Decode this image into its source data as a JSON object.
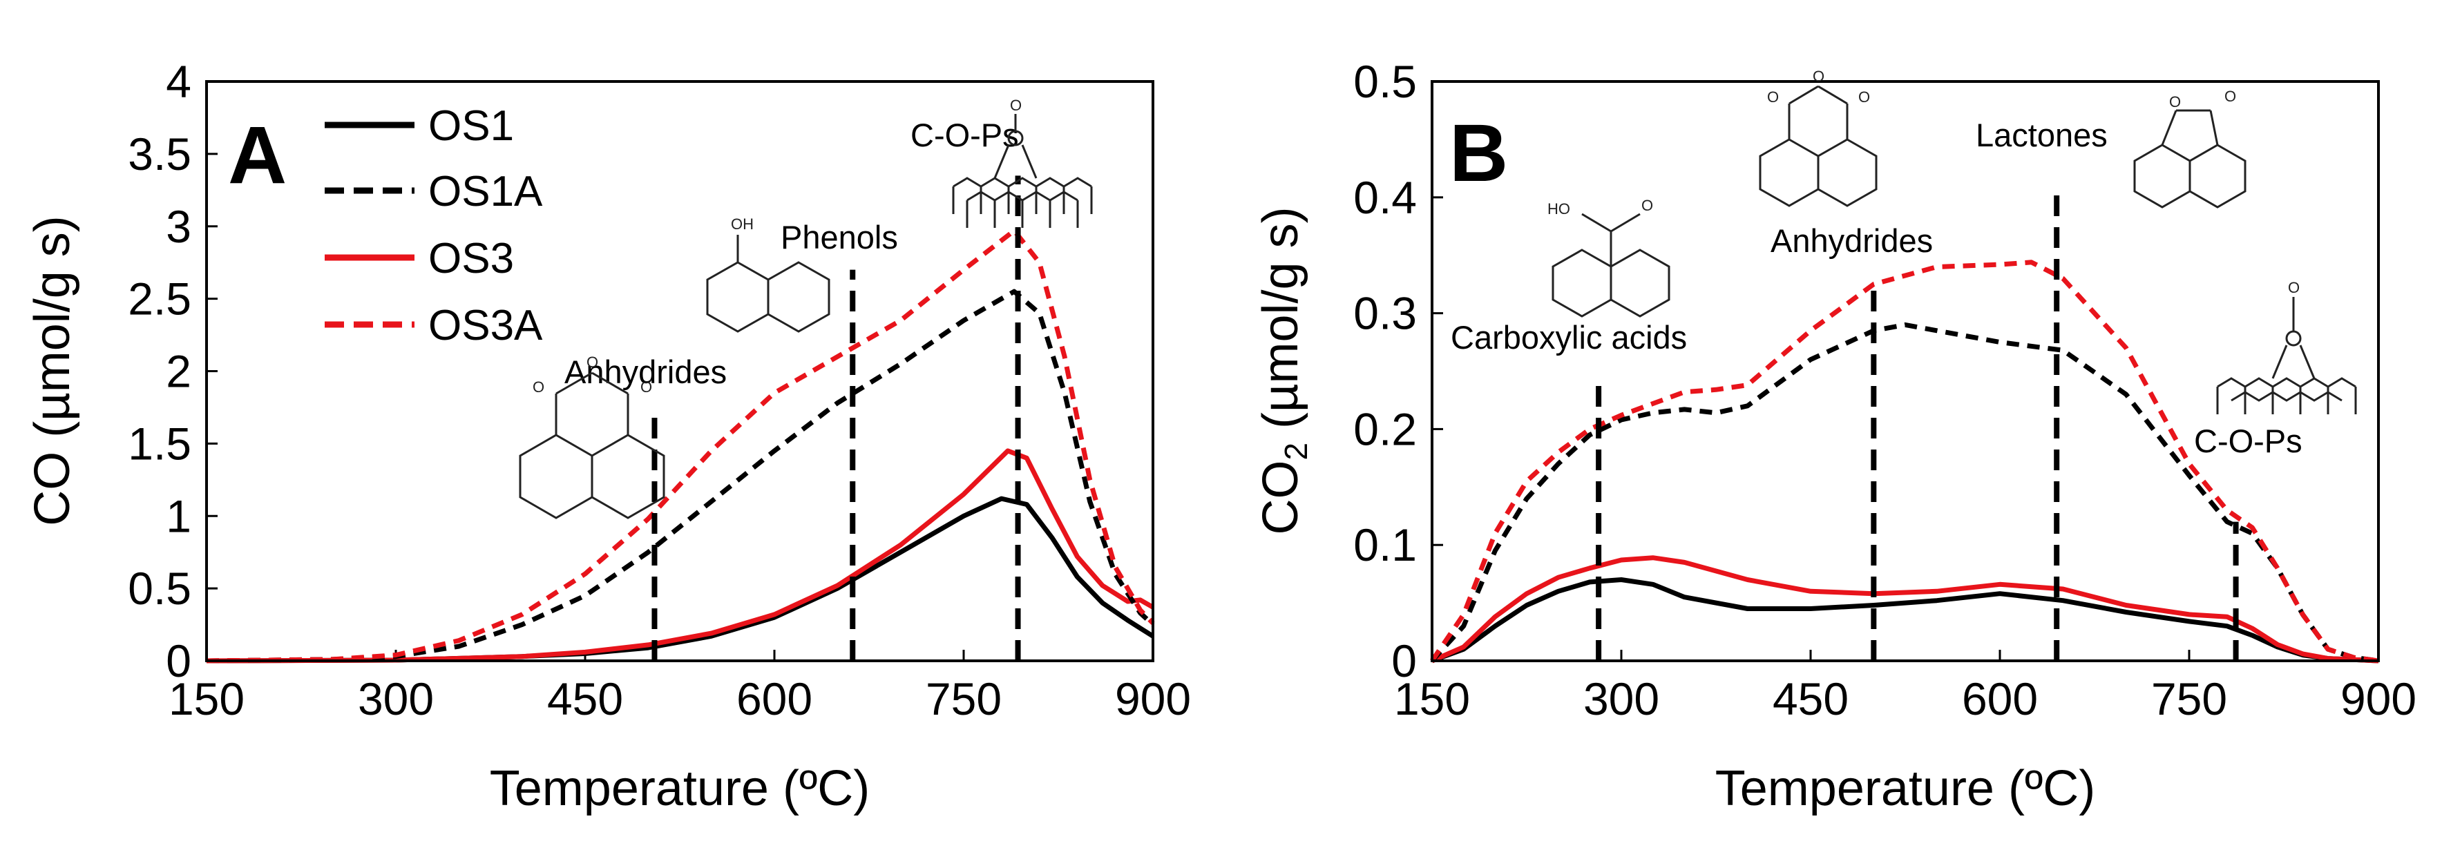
{
  "chart_data": [
    {
      "panel": "A",
      "type": "line",
      "xlabel": "Temperature (ºC)",
      "ylabel": "CO (µmol/g s)",
      "xlim": [
        150,
        900
      ],
      "ylim": [
        0,
        4
      ],
      "xticks": [
        150,
        300,
        450,
        600,
        750,
        900
      ],
      "yticks": [
        0,
        0.5,
        1,
        1.5,
        2,
        2.5,
        3,
        3.5,
        4
      ],
      "ytick_labels": [
        "0",
        "0.5",
        "1",
        "1.5",
        "2",
        "2.5",
        "3",
        "3.5",
        "4"
      ],
      "legend": [
        {
          "name": "OS1",
          "color": "#000000",
          "style": "solid"
        },
        {
          "name": "OS1A",
          "color": "#000000",
          "style": "dashed"
        },
        {
          "name": "OS3",
          "color": "#e8141b",
          "style": "solid"
        },
        {
          "name": "OS3A",
          "color": "#e8141b",
          "style": "dashed"
        }
      ],
      "series": [
        {
          "name": "OS1",
          "color": "#000000",
          "style": "solid",
          "x": [
            150,
            300,
            400,
            450,
            500,
            550,
            600,
            650,
            700,
            750,
            780,
            800,
            820,
            840,
            860,
            880,
            900
          ],
          "y": [
            0,
            0.005,
            0.03,
            0.05,
            0.09,
            0.17,
            0.3,
            0.5,
            0.75,
            1.0,
            1.12,
            1.08,
            0.85,
            0.58,
            0.4,
            0.28,
            0.17
          ]
        },
        {
          "name": "OS3",
          "color": "#e8141b",
          "style": "solid",
          "x": [
            150,
            300,
            400,
            450,
            500,
            550,
            600,
            650,
            700,
            750,
            785,
            800,
            820,
            840,
            860,
            880,
            890,
            900
          ],
          "y": [
            0,
            0.005,
            0.03,
            0.06,
            0.11,
            0.19,
            0.32,
            0.52,
            0.8,
            1.15,
            1.45,
            1.4,
            1.05,
            0.72,
            0.52,
            0.41,
            0.42,
            0.37
          ]
        },
        {
          "name": "OS1A",
          "color": "#000000",
          "style": "dashed",
          "x": [
            150,
            250,
            300,
            350,
            400,
            450,
            500,
            550,
            600,
            650,
            700,
            750,
            790,
            810,
            830,
            850,
            870,
            890,
            900
          ],
          "y": [
            0,
            0.01,
            0.03,
            0.1,
            0.25,
            0.45,
            0.75,
            1.1,
            1.45,
            1.78,
            2.05,
            2.35,
            2.55,
            2.4,
            1.85,
            1.1,
            0.6,
            0.33,
            0.25
          ]
        },
        {
          "name": "OS3A",
          "color": "#e8141b",
          "style": "dashed",
          "x": [
            150,
            250,
            300,
            350,
            400,
            450,
            500,
            550,
            600,
            650,
            700,
            750,
            790,
            810,
            830,
            850,
            870,
            890,
            900
          ],
          "y": [
            0,
            0.01,
            0.04,
            0.14,
            0.32,
            0.6,
            0.98,
            1.45,
            1.85,
            2.1,
            2.35,
            2.7,
            2.97,
            2.75,
            2.1,
            1.25,
            0.65,
            0.35,
            0.26
          ]
        }
      ],
      "markers": [
        {
          "x": 505,
          "y_from": 0,
          "y_to": 1.75,
          "label": "Anhydrides"
        },
        {
          "x": 662,
          "y_from": 0,
          "y_to": 2.7,
          "label": "Phenols"
        },
        {
          "x": 793,
          "y_from": 0,
          "y_to": 3.35,
          "label": "C-O-Ps"
        }
      ]
    },
    {
      "panel": "B",
      "type": "line",
      "xlabel": "Temperature (ºC)",
      "ylabel": "CO2 (µmol/g s)",
      "ylabel_main": "CO",
      "ylabel_sub": "2",
      "ylabel_rest": " (µmol/g s)",
      "xlim": [
        150,
        900
      ],
      "ylim": [
        0,
        0.5
      ],
      "xticks": [
        150,
        300,
        450,
        600,
        750,
        900
      ],
      "yticks": [
        0,
        0.1,
        0.2,
        0.3,
        0.4,
        0.5
      ],
      "ytick_labels": [
        "0",
        "0.1",
        "0.2",
        "0.3",
        "0.4",
        "0.5"
      ],
      "series": [
        {
          "name": "OS1",
          "color": "#000000",
          "style": "solid",
          "x": [
            150,
            175,
            200,
            225,
            250,
            275,
            300,
            325,
            350,
            400,
            450,
            500,
            550,
            600,
            650,
            700,
            750,
            780,
            800,
            820,
            840,
            860,
            880,
            900
          ],
          "y": [
            0,
            0.01,
            0.03,
            0.048,
            0.06,
            0.068,
            0.07,
            0.066,
            0.055,
            0.045,
            0.045,
            0.048,
            0.052,
            0.058,
            0.052,
            0.042,
            0.034,
            0.03,
            0.022,
            0.012,
            0.005,
            0.002,
            0.001,
            0
          ]
        },
        {
          "name": "OS3",
          "color": "#e8141b",
          "style": "solid",
          "x": [
            150,
            175,
            200,
            225,
            250,
            275,
            300,
            325,
            350,
            400,
            450,
            500,
            550,
            600,
            650,
            700,
            750,
            780,
            800,
            820,
            840,
            860,
            880,
            900
          ],
          "y": [
            0,
            0.012,
            0.038,
            0.058,
            0.072,
            0.08,
            0.087,
            0.089,
            0.085,
            0.07,
            0.06,
            0.058,
            0.06,
            0.066,
            0.062,
            0.048,
            0.04,
            0.038,
            0.028,
            0.014,
            0.006,
            0.002,
            0.001,
            0
          ]
        },
        {
          "name": "OS1A",
          "color": "#000000",
          "style": "dashed",
          "x": [
            150,
            175,
            200,
            225,
            250,
            275,
            300,
            325,
            350,
            375,
            400,
            450,
            500,
            525,
            550,
            600,
            650,
            700,
            750,
            780,
            800,
            820,
            840,
            860,
            880,
            900
          ],
          "y": [
            0,
            0.03,
            0.095,
            0.14,
            0.17,
            0.195,
            0.208,
            0.214,
            0.217,
            0.214,
            0.22,
            0.26,
            0.285,
            0.29,
            0.285,
            0.275,
            0.268,
            0.23,
            0.16,
            0.12,
            0.11,
            0.08,
            0.04,
            0.01,
            0.003,
            0
          ]
        },
        {
          "name": "OS3A",
          "color": "#e8141b",
          "style": "dashed",
          "x": [
            150,
            175,
            200,
            225,
            250,
            275,
            300,
            325,
            350,
            375,
            400,
            450,
            500,
            550,
            600,
            625,
            650,
            700,
            750,
            780,
            800,
            820,
            840,
            860,
            880,
            900
          ],
          "y": [
            0,
            0.04,
            0.11,
            0.155,
            0.18,
            0.2,
            0.212,
            0.222,
            0.232,
            0.234,
            0.238,
            0.285,
            0.325,
            0.34,
            0.342,
            0.344,
            0.33,
            0.27,
            0.17,
            0.13,
            0.115,
            0.08,
            0.04,
            0.01,
            0.003,
            0
          ]
        }
      ],
      "markers": [
        {
          "x": 282,
          "y_from": 0,
          "y_to": 0.24,
          "label": "Carboxylic acids"
        },
        {
          "x": 500,
          "y_from": 0,
          "y_to": 0.32,
          "label": "Anhydrides"
        },
        {
          "x": 645,
          "y_from": 0,
          "y_to": 0.41,
          "label": "Lactones"
        },
        {
          "x": 787,
          "y_from": 0,
          "y_to": 0.12,
          "label": "C-O-Ps"
        }
      ]
    }
  ]
}
